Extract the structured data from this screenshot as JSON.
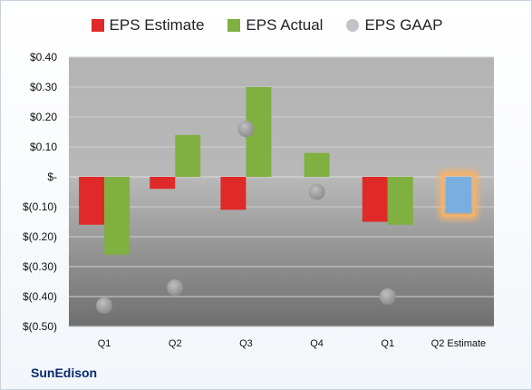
{
  "chart_data": {
    "type": "bar",
    "categories": [
      "Q1",
      "Q2",
      "Q3",
      "Q4",
      "Q1",
      "Q2 Estimate"
    ],
    "series": [
      {
        "name": "EPS Estimate",
        "color": "#e02a2a",
        "values": [
          -0.16,
          -0.04,
          -0.11,
          null,
          -0.15,
          -0.12
        ]
      },
      {
        "name": "EPS Actual",
        "color": "#7fb040",
        "values": [
          -0.26,
          0.14,
          0.3,
          0.08,
          -0.16,
          null
        ]
      },
      {
        "name": "EPS GAAP",
        "color": "#9aa0a6",
        "marker": "dot",
        "values": [
          -0.43,
          -0.37,
          0.16,
          -0.05,
          -0.4,
          null
        ]
      }
    ],
    "highlight": {
      "category": "Q2 Estimate",
      "color": "#7aaee0",
      "glow": "#f5b26b"
    },
    "yticks": [
      0.4,
      0.3,
      0.2,
      0.1,
      0,
      -0.1,
      -0.2,
      -0.3,
      -0.4,
      -0.5
    ],
    "ytick_labels": [
      "$0.40",
      "$0.30",
      "$0.20",
      "$0.10",
      "$-",
      "$(0.10)",
      "$(0.20)",
      "$(0.30)",
      "$(0.40)",
      "$(0.50)"
    ],
    "ylim": [
      -0.5,
      0.4
    ],
    "grid": true,
    "legend_position": "top"
  },
  "company_name": "SunEdison"
}
